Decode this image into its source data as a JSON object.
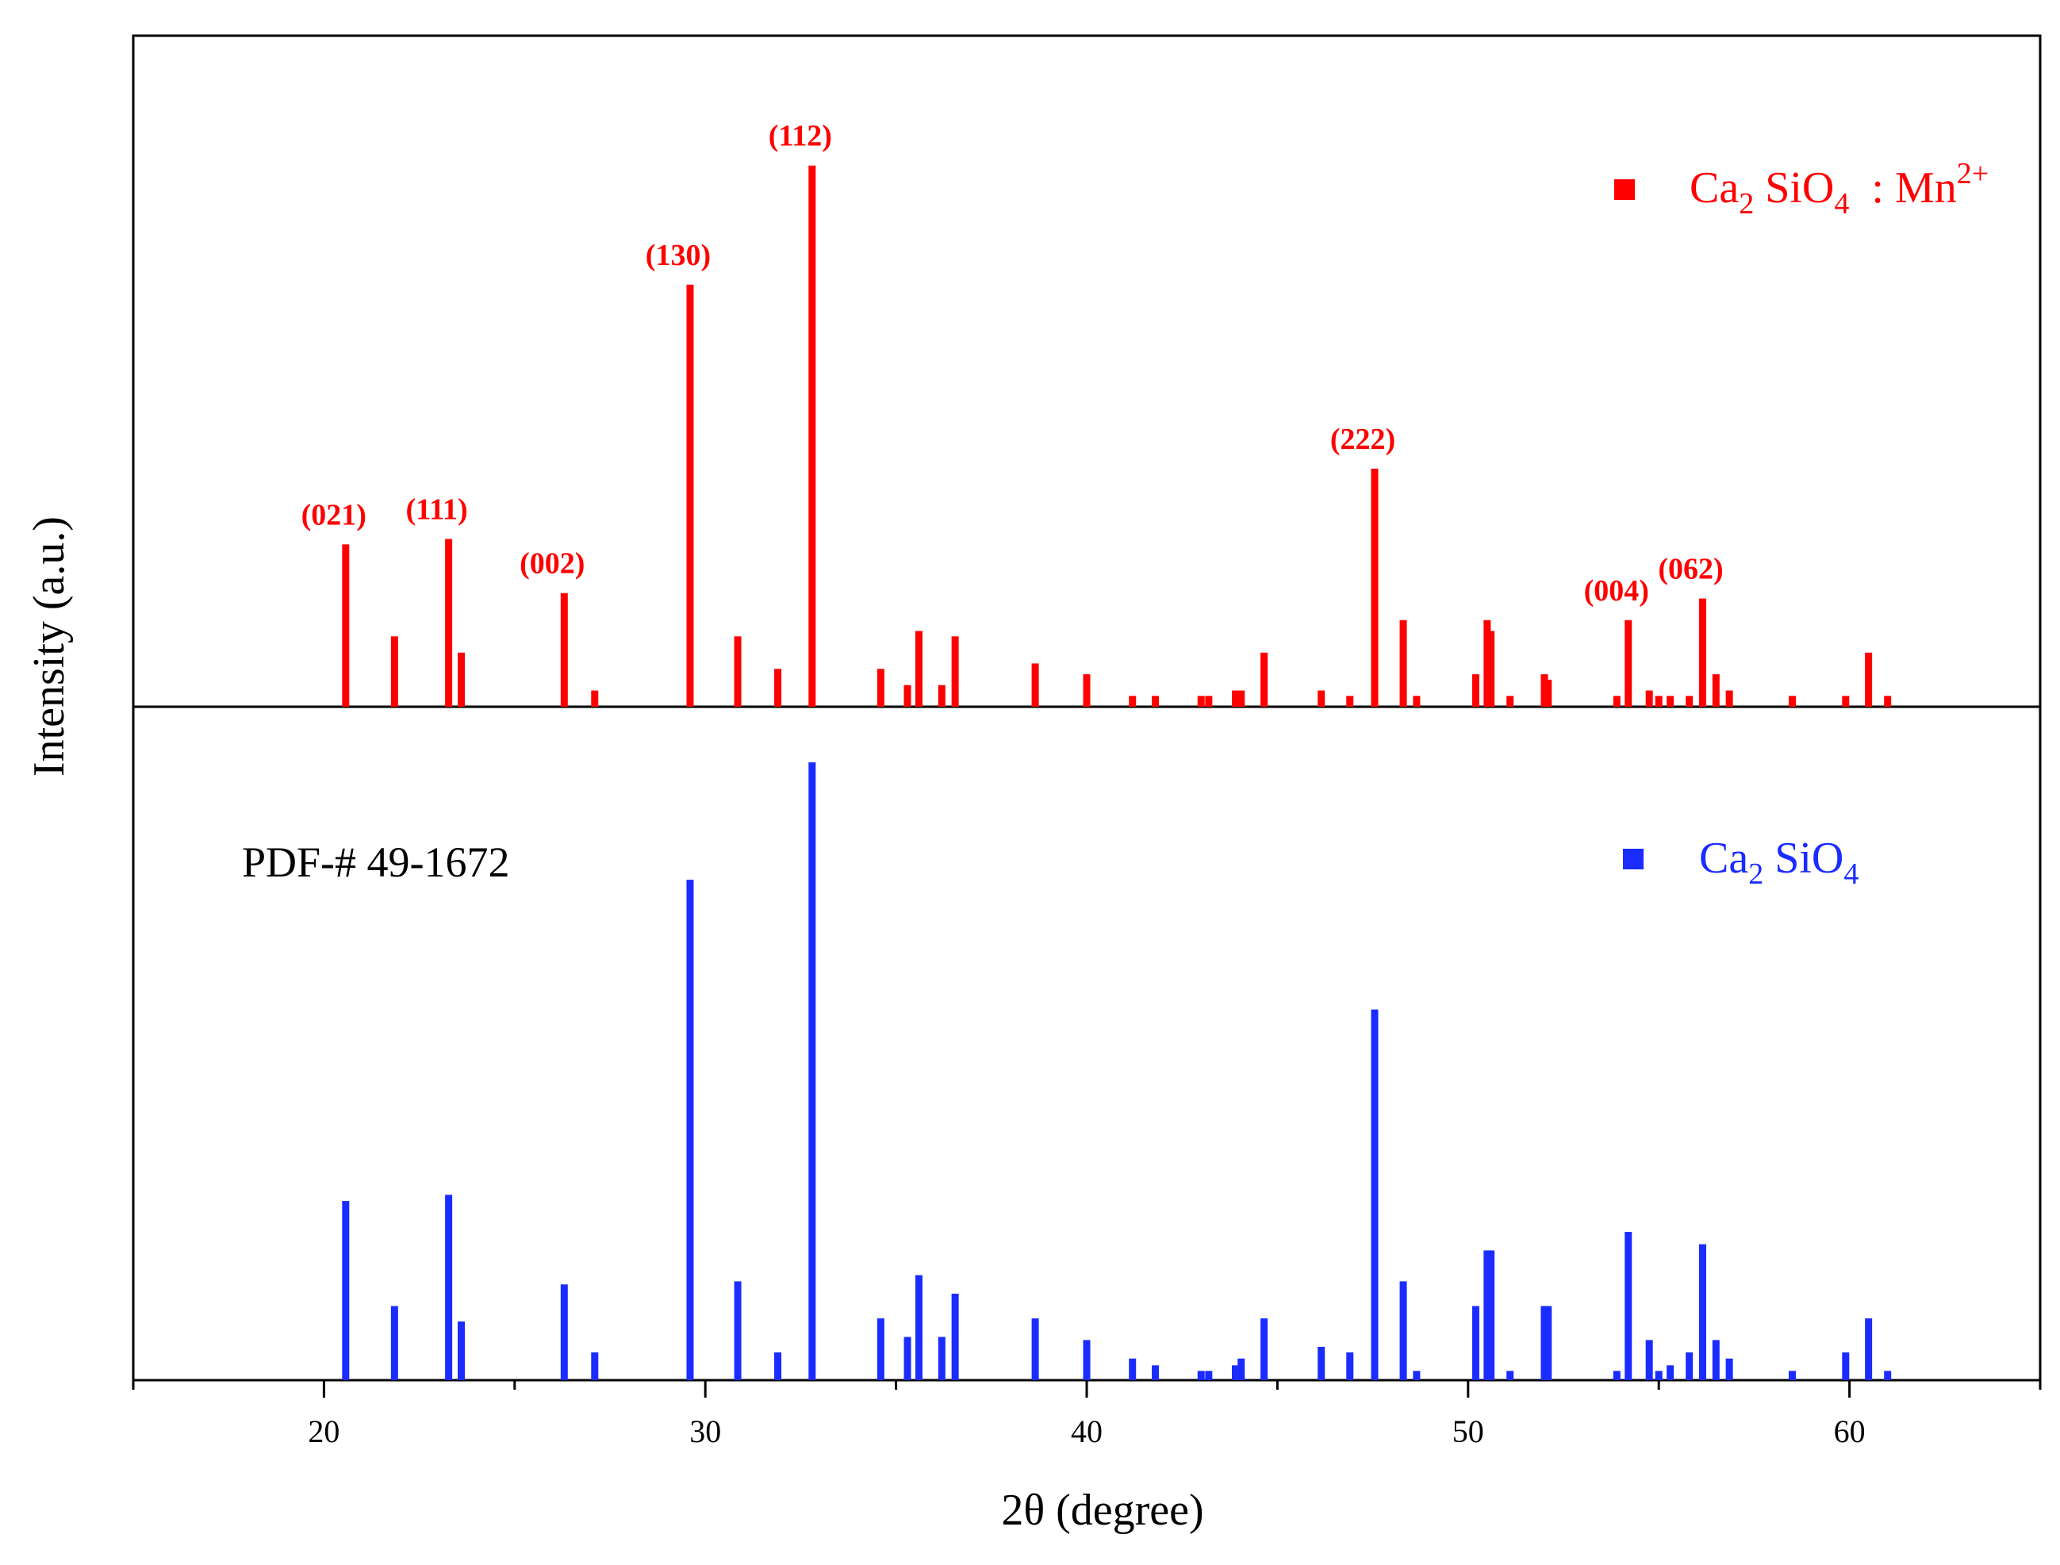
{
  "chart_data": {
    "type": "bar",
    "xlabel": "2θ  (degree)",
    "ylabel": "Intensity (a.u.)",
    "xlim": [
      15,
      65
    ],
    "x_ticks": [
      20,
      30,
      40,
      50,
      60
    ],
    "x_tick_labels": [
      "20",
      "30",
      "40",
      "50",
      "60"
    ],
    "panels": [
      {
        "name": "Ca2SiO4 : Mn2+",
        "legend": {
          "main": "Ca",
          "sub1": "2",
          "mid": " SiO",
          "sub2": "4",
          "tail": "  : Mn",
          "sup": "2+"
        },
        "legend_position": "top-right",
        "color": "#ff0000",
        "ylim": [
          0,
          124
        ],
        "x": [
          20.57,
          21.85,
          23.27,
          23.6,
          26.3,
          27.1,
          29.6,
          30.85,
          31.9,
          32.8,
          34.6,
          35.3,
          35.6,
          36.2,
          36.55,
          38.65,
          40.0,
          41.2,
          41.8,
          43.0,
          43.2,
          43.9,
          44.05,
          44.65,
          46.15,
          46.9,
          47.55,
          48.3,
          48.65,
          50.2,
          50.5,
          50.6,
          51.1,
          52.0,
          52.1,
          53.9,
          54.2,
          54.75,
          55.0,
          55.3,
          55.8,
          56.15,
          56.5,
          56.85,
          58.5,
          59.9,
          60.5,
          61.0
        ],
        "values": [
          30,
          13,
          31,
          10,
          21,
          3,
          78,
          13,
          7,
          100,
          7,
          4,
          14,
          4,
          13,
          8,
          6,
          2,
          2,
          2,
          2,
          3,
          3,
          10,
          3,
          2,
          44,
          16,
          2,
          6,
          16,
          14,
          2,
          6,
          5,
          2,
          16,
          3,
          2,
          2,
          2,
          20,
          6,
          3,
          2,
          2,
          10,
          2
        ],
        "annotations": [
          {
            "label": "(021)",
            "x": 20.57,
            "y": 30
          },
          {
            "label": "(111)",
            "x": 23.27,
            "y": 31
          },
          {
            "label": "(002)",
            "x": 26.3,
            "y": 21
          },
          {
            "label": "(130)",
            "x": 29.6,
            "y": 78
          },
          {
            "label": "(112)",
            "x": 32.8,
            "y": 100
          },
          {
            "label": "(222)",
            "x": 47.55,
            "y": 44
          },
          {
            "label": "(004)",
            "x": 54.2,
            "y": 16
          },
          {
            "label": "(062)",
            "x": 56.15,
            "y": 20
          }
        ]
      },
      {
        "name": "Ca2SiO4",
        "legend": {
          "main": "Ca",
          "sub1": "2",
          "mid": " SiO",
          "sub2": "4",
          "tail": "",
          "sup": ""
        },
        "legend_position": "top-right",
        "reference_label": "PDF-# 49-1672",
        "color": "#1a2cff",
        "ylim": [
          0,
          109
        ],
        "x": [
          20.57,
          21.85,
          23.27,
          23.6,
          26.3,
          27.1,
          29.6,
          30.85,
          31.9,
          32.8,
          34.6,
          35.3,
          35.6,
          36.2,
          36.55,
          38.65,
          40.0,
          41.2,
          41.8,
          43.0,
          43.2,
          43.9,
          44.05,
          44.65,
          46.15,
          46.9,
          47.55,
          48.3,
          48.65,
          50.2,
          50.5,
          50.6,
          51.1,
          52.0,
          52.1,
          53.9,
          54.2,
          54.75,
          55.0,
          55.3,
          55.8,
          56.15,
          56.5,
          56.85,
          58.5,
          59.9,
          60.5,
          61.0
        ],
        "values": [
          29,
          12,
          30,
          9.5,
          15.5,
          4.5,
          81,
          16,
          4.5,
          100,
          10,
          7,
          17,
          7,
          14,
          10,
          6.5,
          3.5,
          2.4,
          1.5,
          1.5,
          2.4,
          3.5,
          10,
          5.4,
          4.5,
          60,
          16,
          1.5,
          12,
          21,
          21,
          1.5,
          12,
          12,
          1.5,
          24,
          6.5,
          1.5,
          2.4,
          4.5,
          22,
          6.5,
          3.5,
          1.5,
          4.5,
          10,
          1.5
        ]
      }
    ]
  }
}
